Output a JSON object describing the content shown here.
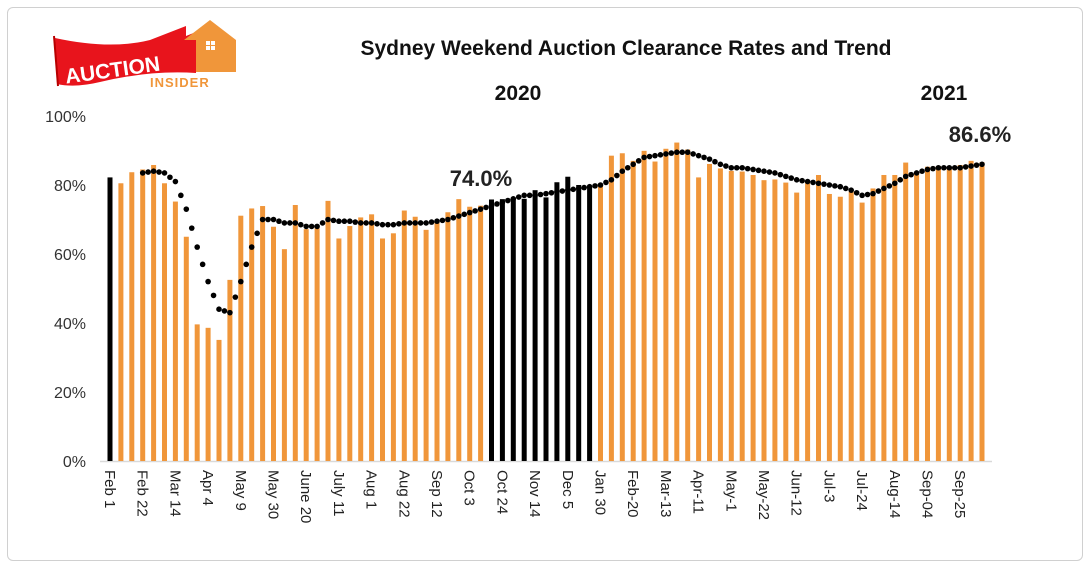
{
  "logo": {
    "text_top": "AUCTION",
    "text_bottom": "INSIDER"
  },
  "colors": {
    "bar": "#F0963A",
    "highlight_bar": "#000000",
    "trend": "#000000",
    "logo_red": "#E8141C",
    "logo_orange": "#F0963A"
  },
  "chart_data": {
    "type": "bar",
    "title": "Sydney Weekend Auction Clearance Rates and Trend",
    "year_labels": [
      "2020",
      "2021"
    ],
    "annotations": [
      "74.0%",
      "86.6%"
    ],
    "xlabel": "",
    "ylabel": "",
    "ylim": [
      0,
      100
    ],
    "y_ticks": [
      "0%",
      "20%",
      "40%",
      "60%",
      "80%",
      "100%"
    ],
    "x_tick_labels": [
      "Feb 1",
      "Feb 22",
      "Mar 14",
      "Apr 4",
      "May 9",
      "May 30",
      "June 20",
      "July 11",
      "Aug 1",
      "Aug 22",
      "Sep 12",
      "Oct 3",
      "Oct 24",
      "Nov 14",
      "Dec 5",
      "Jan 30",
      "Feb-20",
      "Mar-13",
      "Apr-11",
      "May-1",
      "May-22",
      "Jun-12",
      "Jul-3",
      "Jul-24",
      "Aug-14",
      "Sep-04",
      "Sep-25"
    ],
    "x_tick_every": 3,
    "series": [
      {
        "name": "Clearance rate",
        "type": "bar",
        "values": [
          82.2,
          80.5,
          83.7,
          84.5,
          85.8,
          80.5,
          75.2,
          65.0,
          39.6,
          38.6,
          35.1,
          52.5,
          71.1,
          73.2,
          73.9,
          67.9,
          61.4,
          74.2,
          67.2,
          67.5,
          75.4,
          64.5,
          68.1,
          70.6,
          71.5,
          64.5,
          66.0,
          72.6,
          70.8,
          67.0,
          69.4,
          72.1,
          75.9,
          73.7,
          74.0,
          75.8,
          75.9,
          75.9,
          76.0,
          78.5,
          76.4,
          80.8,
          82.4,
          80.0,
          79.3,
          79.7,
          88.5,
          89.2,
          87.0,
          89.9,
          86.8,
          90.5,
          92.3,
          90.3,
          82.2,
          86.1,
          84.8,
          84.1,
          83.9,
          82.9,
          81.4,
          81.6,
          80.7,
          77.8,
          81.0,
          82.9,
          77.4,
          76.6,
          78.1,
          74.9,
          79.0,
          82.9,
          82.9,
          86.5,
          83.4,
          85.3,
          85.5,
          84.8,
          85.8,
          87.0,
          86.6
        ],
        "highlight_indices": [
          0,
          35,
          36,
          37,
          38,
          39,
          40,
          41,
          42,
          43,
          44
        ]
      },
      {
        "name": "Trend",
        "type": "dotted-line",
        "values": [
          null,
          null,
          null,
          83.5,
          84,
          83.5,
          81,
          73,
          62,
          52,
          44,
          43,
          52,
          62,
          70,
          70,
          69,
          69,
          68,
          68,
          70,
          69.5,
          69.5,
          69,
          69,
          68.5,
          68.5,
          69,
          69,
          69,
          69.5,
          70,
          71,
          72,
          73,
          74,
          75,
          76,
          77,
          77,
          77.5,
          78,
          78.5,
          79,
          79.5,
          80,
          81.5,
          84,
          86,
          88,
          88.5,
          89,
          89.5,
          89.5,
          88.5,
          87.5,
          86,
          85,
          85,
          84.5,
          84,
          83.5,
          82.5,
          81.5,
          81,
          80.5,
          80,
          79.5,
          78.5,
          77,
          77.5,
          79,
          80.5,
          82.5,
          83.5,
          84.5,
          85,
          85,
          85,
          85.5,
          86
        ]
      }
    ]
  }
}
